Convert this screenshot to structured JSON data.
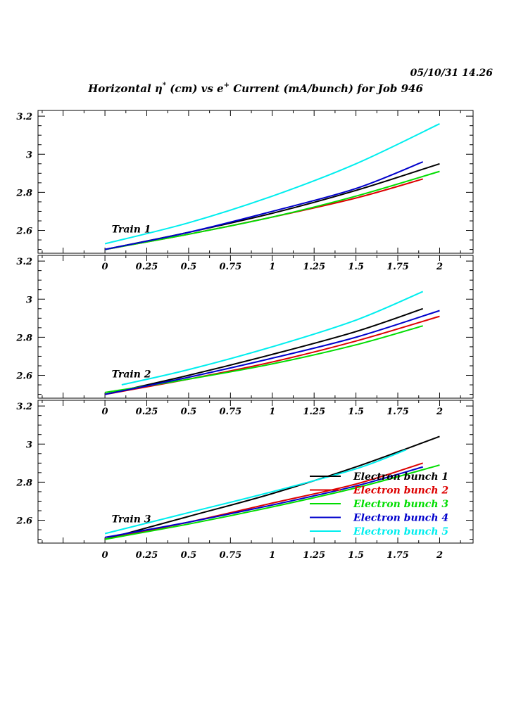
{
  "header": {
    "datetime": "05/10/31   14.26",
    "title_parts": {
      "pre": "Horizontal ",
      "eta": "η",
      "eta_sup": "*",
      "mid": " (cm) vs e",
      "e_sup": "+",
      "post": " Current (mA/bunch) for Job 946"
    }
  },
  "colors": {
    "Electron bunch 1": "#000000",
    "Electron bunch 2": "#dd0000",
    "Electron bunch 3": "#00dd00",
    "Electron bunch 4": "#0000cc",
    "Electron bunch 5": "#00eeee"
  },
  "chart_data": [
    {
      "type": "line",
      "panel_label": "Train 1",
      "xlim": [
        -0.4,
        2.2
      ],
      "ylim": [
        2.48,
        3.23
      ],
      "x_ticks": [
        "0",
        "0.25",
        "0.5",
        "0.75",
        "1",
        "1.25",
        "1.5",
        "1.75",
        "2"
      ],
      "y_ticks": [
        "2.6",
        "2.8",
        "3",
        "3.2"
      ],
      "series": [
        {
          "name": "Electron bunch 1",
          "x": [
            0,
            0.5,
            1.0,
            1.5,
            2.0
          ],
          "y": [
            2.5,
            2.59,
            2.69,
            2.81,
            2.95
          ]
        },
        {
          "name": "Electron bunch 2",
          "x": [
            0,
            0.5,
            1.0,
            1.5,
            1.9
          ],
          "y": [
            2.5,
            2.58,
            2.67,
            2.77,
            2.87
          ]
        },
        {
          "name": "Electron bunch 3",
          "x": [
            0,
            0.5,
            1.0,
            1.5,
            2.0
          ],
          "y": [
            2.5,
            2.58,
            2.67,
            2.78,
            2.91
          ]
        },
        {
          "name": "Electron bunch 4",
          "x": [
            0,
            0.5,
            1.0,
            1.5,
            1.9
          ],
          "y": [
            2.5,
            2.59,
            2.7,
            2.82,
            2.96
          ]
        },
        {
          "name": "Electron bunch 5",
          "x": [
            0,
            0.5,
            1.0,
            1.5,
            2.0
          ],
          "y": [
            2.53,
            2.64,
            2.78,
            2.95,
            3.16
          ]
        }
      ]
    },
    {
      "type": "line",
      "panel_label": "Train 2",
      "xlim": [
        -0.4,
        2.2
      ],
      "ylim": [
        2.48,
        3.23
      ],
      "x_ticks": [
        "0",
        "0.25",
        "0.5",
        "0.75",
        "1",
        "1.25",
        "1.5",
        "1.75",
        "2"
      ],
      "y_ticks": [
        "2.6",
        "2.8",
        "3",
        "3.2"
      ],
      "series": [
        {
          "name": "Electron bunch 1",
          "x": [
            0,
            0.5,
            1.0,
            1.5,
            1.9
          ],
          "y": [
            2.5,
            2.6,
            2.71,
            2.83,
            2.95
          ]
        },
        {
          "name": "Electron bunch 2",
          "x": [
            0,
            0.5,
            1.0,
            1.5,
            2.0
          ],
          "y": [
            2.5,
            2.58,
            2.67,
            2.78,
            2.91
          ]
        },
        {
          "name": "Electron bunch 3",
          "x": [
            0,
            0.5,
            1.0,
            1.5,
            1.9
          ],
          "y": [
            2.51,
            2.58,
            2.66,
            2.76,
            2.86
          ]
        },
        {
          "name": "Electron bunch 4",
          "x": [
            0,
            0.5,
            1.0,
            1.5,
            2.0
          ],
          "y": [
            2.5,
            2.59,
            2.69,
            2.8,
            2.94
          ]
        },
        {
          "name": "Electron bunch 5",
          "x": [
            0.1,
            0.5,
            1.0,
            1.5,
            1.9
          ],
          "y": [
            2.55,
            2.63,
            2.75,
            2.89,
            3.04
          ]
        }
      ]
    },
    {
      "type": "line",
      "panel_label": "Train 3",
      "xlim": [
        -0.4,
        2.2
      ],
      "ylim": [
        2.48,
        3.23
      ],
      "x_ticks": [
        "0",
        "0.25",
        "0.5",
        "0.75",
        "1",
        "1.25",
        "1.5",
        "1.75",
        "2"
      ],
      "y_ticks": [
        "2.6",
        "2.8",
        "3",
        "3.2"
      ],
      "legend_position": "bottom-right",
      "series": [
        {
          "name": "Electron bunch 1",
          "x": [
            0,
            0.5,
            1.0,
            1.5,
            2.0
          ],
          "y": [
            2.5,
            2.62,
            2.74,
            2.88,
            3.04
          ]
        },
        {
          "name": "Electron bunch 2",
          "x": [
            0,
            0.5,
            1.0,
            1.5,
            1.9
          ],
          "y": [
            2.5,
            2.59,
            2.69,
            2.79,
            2.9
          ]
        },
        {
          "name": "Electron bunch 3",
          "x": [
            0,
            0.5,
            1.0,
            1.5,
            2.0
          ],
          "y": [
            2.5,
            2.58,
            2.67,
            2.77,
            2.89
          ]
        },
        {
          "name": "Electron bunch 4",
          "x": [
            0,
            0.5,
            1.0,
            1.5,
            1.9
          ],
          "y": [
            2.51,
            2.59,
            2.68,
            2.78,
            2.88
          ]
        },
        {
          "name": "Electron bunch 5",
          "x": [
            0,
            0.5,
            1.0,
            1.5,
            1.8
          ],
          "y": [
            2.53,
            2.64,
            2.75,
            2.87,
            2.97
          ]
        }
      ]
    }
  ]
}
